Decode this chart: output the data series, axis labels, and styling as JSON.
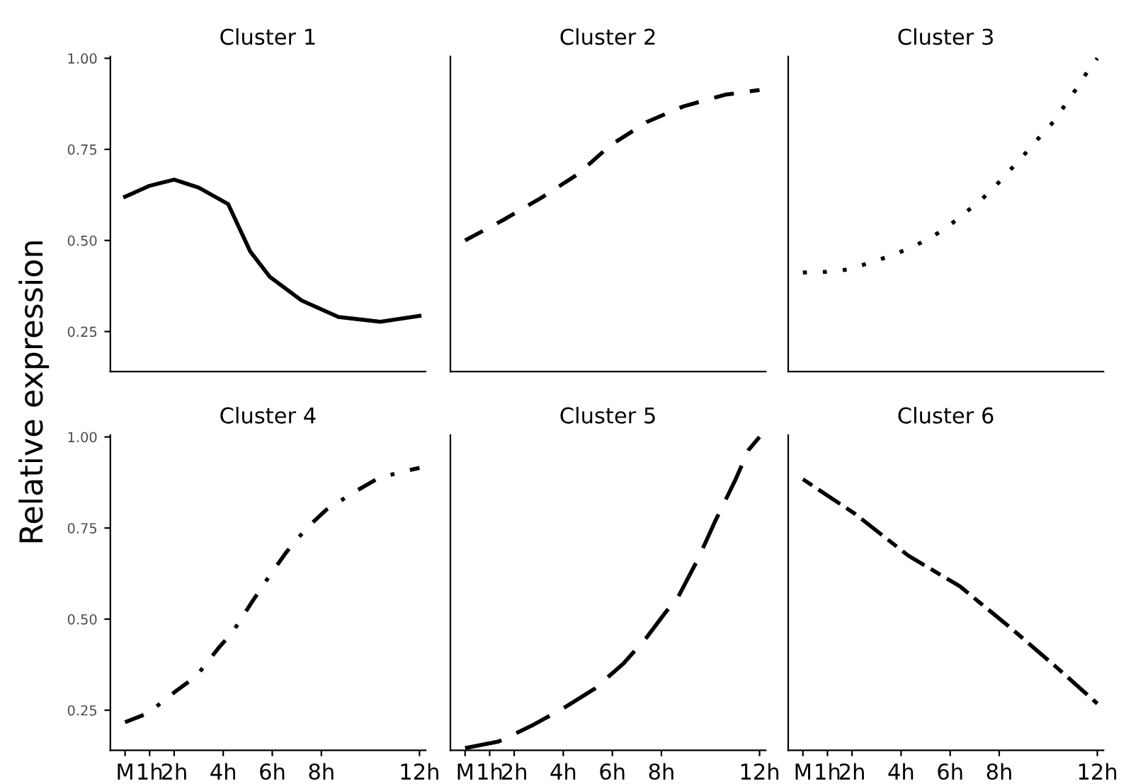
{
  "chart_data": [
    {
      "type": "line",
      "title": "Cluster 1",
      "ylabel": "Relative expression",
      "line_style": "solid",
      "x": [
        0,
        1,
        2,
        3,
        4.2,
        5.1,
        5.9,
        7.2,
        8.7,
        10.4,
        12
      ],
      "values": [
        0.62,
        0.65,
        0.667,
        0.645,
        0.6,
        0.47,
        0.4,
        0.335,
        0.29,
        0.277,
        0.293
      ],
      "color": "#000000",
      "xlim": [
        -0.6,
        12.25
      ],
      "ylim": [
        0.14,
        1.005
      ],
      "yticks": [
        {
          "value": 0.25,
          "label": "0.25"
        },
        {
          "value": 0.5,
          "label": "0.50"
        },
        {
          "value": 0.75,
          "label": "0.75"
        },
        {
          "value": 1,
          "label": "1.00"
        }
      ],
      "tick_labels": "y"
    },
    {
      "type": "line",
      "title": "Cluster 2",
      "line_style": "dashed",
      "x": [
        0,
        1.55,
        3.1,
        4.6,
        5.9,
        7.4,
        8.9,
        10.6,
        12
      ],
      "values": [
        0.5,
        0.556,
        0.617,
        0.682,
        0.76,
        0.825,
        0.868,
        0.9,
        0.913
      ],
      "color": "#000000",
      "xlim": [
        -0.6,
        12.25
      ],
      "ylim": [
        0.14,
        1.005
      ],
      "tick_labels": false
    },
    {
      "type": "line",
      "title": "Cluster 3",
      "line_style": "dotted",
      "x": [
        0,
        0.95,
        1.8,
        2.6,
        3.4,
        4.3,
        5.0,
        5.8,
        6.5,
        7.2,
        7.8,
        8.4,
        9.0,
        9.6,
        10.2,
        10.7,
        11.2,
        11.7,
        12
      ],
      "values": [
        0.412,
        0.414,
        0.42,
        0.436,
        0.454,
        0.477,
        0.5,
        0.532,
        0.57,
        0.607,
        0.646,
        0.69,
        0.734,
        0.78,
        0.825,
        0.873,
        0.922,
        0.974,
        1.0
      ],
      "color": "#000000",
      "xlim": [
        -0.6,
        12.25
      ],
      "ylim": [
        0.14,
        1.005
      ],
      "tick_labels": false
    },
    {
      "type": "line",
      "title": "Cluster 4",
      "line_style": "dashdot",
      "x": [
        0,
        0.94,
        2.1,
        2.9,
        3.8,
        4.4,
        5.2,
        5.9,
        6.6,
        7.4,
        8.2,
        9.3,
        10.3,
        11.2,
        12
      ],
      "values": [
        0.217,
        0.242,
        0.304,
        0.343,
        0.42,
        0.466,
        0.55,
        0.62,
        0.686,
        0.75,
        0.8,
        0.847,
        0.886,
        0.903,
        0.915
      ],
      "color": "#000000",
      "xlim": [
        -0.6,
        12.25
      ],
      "ylim": [
        0.14,
        1.005
      ],
      "xticks": [
        {
          "value": 0,
          "label": "M"
        },
        {
          "value": 1,
          "label": "1h"
        },
        {
          "value": 2,
          "label": "2h"
        },
        {
          "value": 4,
          "label": "4h"
        },
        {
          "value": 6,
          "label": "6h"
        },
        {
          "value": 8,
          "label": "8h"
        },
        {
          "value": 12,
          "label": "12h"
        }
      ],
      "yticks": [
        {
          "value": 0.25,
          "label": "0.25"
        },
        {
          "value": 0.5,
          "label": "0.50"
        },
        {
          "value": 0.75,
          "label": "0.75"
        },
        {
          "value": 1,
          "label": "1.00"
        }
      ]
    },
    {
      "type": "line",
      "title": "Cluster 5",
      "line_style": "longdash",
      "x": [
        0,
        1.36,
        2.7,
        4.0,
        5.3,
        6.45,
        7.4,
        8.15,
        8.7,
        9.5,
        10.2,
        11.0,
        11.55,
        12
      ],
      "values": [
        0.146,
        0.164,
        0.207,
        0.255,
        0.31,
        0.378,
        0.45,
        0.517,
        0.563,
        0.666,
        0.77,
        0.88,
        0.964,
        1.0
      ],
      "color": "#000000",
      "xlim": [
        -0.6,
        12.25
      ],
      "ylim": [
        0.14,
        1.005
      ],
      "xticks": [
        {
          "value": 0,
          "label": "M"
        },
        {
          "value": 1,
          "label": "1h"
        },
        {
          "value": 2,
          "label": "2h"
        },
        {
          "value": 4,
          "label": "4h"
        },
        {
          "value": 6,
          "label": "6h"
        },
        {
          "value": 8,
          "label": "8h"
        },
        {
          "value": 12,
          "label": "12h"
        }
      ],
      "tick_labels": "x"
    },
    {
      "type": "line",
      "title": "Cluster 6",
      "line_style": "twodash",
      "x": [
        0,
        2.1,
        4.3,
        6.4,
        8.5,
        10.4,
        12
      ],
      "values": [
        0.884,
        0.79,
        0.674,
        0.59,
        0.474,
        0.364,
        0.268
      ],
      "color": "#000000",
      "xlim": [
        -0.6,
        12.25
      ],
      "ylim": [
        0.14,
        1.005
      ],
      "xticks": [
        {
          "value": 0,
          "label": "M"
        },
        {
          "value": 1,
          "label": "1h"
        },
        {
          "value": 2,
          "label": "2h"
        },
        {
          "value": 4,
          "label": "4h"
        },
        {
          "value": 6,
          "label": "6h"
        },
        {
          "value": 8,
          "label": "8h"
        },
        {
          "value": 12,
          "label": "12h"
        }
      ],
      "tick_labels": "x"
    }
  ]
}
